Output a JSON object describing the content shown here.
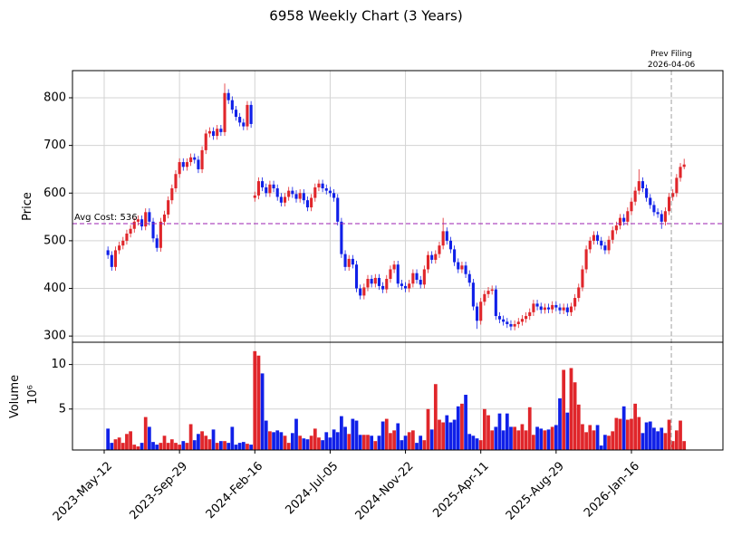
{
  "chart_data": {
    "type": "candlestick",
    "title": "6958 Weekly Chart (3 Years)",
    "y_label": "Price",
    "up_color": "#e0262b",
    "down_color": "#1020e8",
    "grid": true,
    "ylim": [
      287,
      857
    ],
    "yticks": [
      300,
      400,
      500,
      600,
      700,
      800
    ],
    "xlim": [
      -8.42,
      164.3
    ],
    "xticks": [
      {
        "value": 0,
        "label": "2023-May-12"
      },
      {
        "value": 20,
        "label": "2023-Sep-29"
      },
      {
        "value": 40,
        "label": "2024-Feb-16"
      },
      {
        "value": 60,
        "label": "2024-Jul-05"
      },
      {
        "value": 80,
        "label": "2024-Nov-22"
      },
      {
        "value": 100,
        "label": "2025-Apr-11"
      },
      {
        "value": 120,
        "label": "2025-Aug-29"
      },
      {
        "value": 140,
        "label": "2026-Jan-16"
      }
    ],
    "avg_cost": {
      "label": "Avg Cost: 536",
      "value": 536,
      "color": "#9b1fb0"
    },
    "filing": {
      "label": "Prev Filing",
      "date": "2026-04-06",
      "x": 150.6,
      "color": "#a0a0a0"
    },
    "x": [
      1,
      2,
      3,
      4,
      5,
      6,
      7,
      8,
      9,
      10,
      11,
      12,
      13,
      14,
      15,
      16,
      17,
      18,
      19,
      20,
      21,
      22,
      23,
      24,
      25,
      26,
      27,
      28,
      29,
      30,
      31,
      32,
      33,
      34,
      35,
      36,
      37,
      38,
      39,
      40,
      41,
      42,
      43,
      44,
      45,
      46,
      47,
      48,
      49,
      50,
      51,
      52,
      53,
      54,
      55,
      56,
      57,
      58,
      59,
      60,
      61,
      62,
      63,
      64,
      65,
      66,
      67,
      68,
      69,
      70,
      71,
      72,
      73,
      74,
      75,
      76,
      77,
      78,
      79,
      80,
      81,
      82,
      83,
      84,
      85,
      86,
      87,
      88,
      89,
      90,
      91,
      92,
      93,
      94,
      95,
      96,
      97,
      98,
      99,
      100,
      101,
      102,
      103,
      104,
      105,
      106,
      107,
      108,
      109,
      110,
      111,
      112,
      113,
      114,
      115,
      116,
      117,
      118,
      119,
      120,
      121,
      122,
      123,
      124,
      125,
      126,
      127,
      128,
      129,
      130,
      131,
      132,
      133,
      134,
      135,
      136,
      137,
      138,
      139,
      140,
      141,
      142,
      143,
      144,
      145,
      146,
      147,
      148,
      149,
      150,
      151,
      152,
      153,
      154
    ],
    "open": [
      480,
      470,
      445,
      480,
      490,
      500,
      515,
      525,
      540,
      545,
      530,
      560,
      540,
      505,
      485,
      540,
      555,
      585,
      610,
      640,
      665,
      655,
      665,
      675,
      670,
      650,
      690,
      725,
      730,
      720,
      735,
      728,
      810,
      795,
      775,
      760,
      748,
      740,
      785,
      590,
      595,
      625,
      612,
      600,
      618,
      610,
      592,
      580,
      592,
      605,
      598,
      588,
      600,
      585,
      570,
      590,
      612,
      620,
      610,
      605,
      600,
      590,
      540,
      472,
      445,
      462,
      450,
      400,
      385,
      402,
      420,
      410,
      422,
      405,
      398,
      420,
      440,
      450,
      410,
      405,
      400,
      410,
      432,
      418,
      408,
      440,
      470,
      460,
      472,
      490,
      520,
      500,
      482,
      455,
      440,
      448,
      430,
      412,
      362,
      332,
      372,
      388,
      395,
      398,
      342,
      335,
      330,
      325,
      320,
      325,
      330,
      336,
      342,
      350,
      368,
      362,
      355,
      360,
      356,
      365,
      360,
      354,
      360,
      350,
      362,
      380,
      402,
      440,
      482,
      500,
      512,
      500,
      490,
      480,
      502,
      522,
      532,
      548,
      540,
      562,
      582,
      605,
      625,
      610,
      590,
      575,
      560,
      556,
      540,
      562,
      592,
      600,
      632,
      655
    ],
    "high": [
      488,
      478,
      488,
      498,
      508,
      523,
      533,
      548,
      553,
      553,
      568,
      568,
      548,
      513,
      548,
      563,
      593,
      618,
      648,
      673,
      673,
      673,
      683,
      683,
      678,
      698,
      733,
      738,
      738,
      743,
      743,
      830,
      818,
      803,
      783,
      768,
      756,
      793,
      793,
      603,
      633,
      633,
      620,
      626,
      626,
      618,
      600,
      600,
      613,
      613,
      606,
      608,
      608,
      593,
      598,
      620,
      628,
      628,
      618,
      613,
      608,
      598,
      548,
      480,
      470,
      470,
      458,
      408,
      410,
      428,
      428,
      430,
      430,
      413,
      428,
      448,
      458,
      458,
      418,
      413,
      418,
      440,
      440,
      426,
      448,
      478,
      478,
      480,
      498,
      548,
      528,
      508,
      490,
      463,
      456,
      456,
      438,
      420,
      370,
      380,
      396,
      403,
      406,
      406,
      350,
      343,
      338,
      333,
      333,
      338,
      344,
      350,
      358,
      376,
      376,
      370,
      368,
      368,
      373,
      373,
      368,
      368,
      368,
      370,
      388,
      410,
      448,
      490,
      508,
      520,
      520,
      508,
      498,
      510,
      530,
      540,
      556,
      556,
      570,
      590,
      613,
      650,
      633,
      618,
      598,
      583,
      568,
      564,
      570,
      600,
      608,
      640,
      663,
      672
    ],
    "low": [
      462,
      437,
      437,
      472,
      482,
      492,
      507,
      517,
      532,
      522,
      522,
      532,
      497,
      477,
      477,
      532,
      547,
      577,
      602,
      632,
      647,
      647,
      657,
      662,
      642,
      642,
      682,
      717,
      712,
      712,
      720,
      720,
      787,
      767,
      752,
      740,
      732,
      732,
      737,
      582,
      587,
      604,
      592,
      592,
      602,
      584,
      572,
      572,
      584,
      590,
      580,
      580,
      577,
      562,
      562,
      582,
      604,
      602,
      597,
      592,
      582,
      532,
      464,
      437,
      437,
      442,
      392,
      377,
      377,
      394,
      402,
      402,
      397,
      390,
      390,
      412,
      432,
      402,
      397,
      392,
      392,
      402,
      410,
      400,
      400,
      432,
      452,
      452,
      464,
      482,
      492,
      474,
      447,
      432,
      432,
      422,
      404,
      354,
      315,
      324,
      364,
      380,
      387,
      334,
      327,
      322,
      317,
      312,
      312,
      317,
      322,
      328,
      334,
      342,
      354,
      347,
      347,
      348,
      348,
      352,
      346,
      346,
      342,
      342,
      354,
      372,
      394,
      432,
      474,
      492,
      492,
      482,
      472,
      472,
      494,
      514,
      524,
      532,
      532,
      554,
      574,
      597,
      602,
      582,
      567,
      552,
      548,
      525,
      532,
      554,
      584,
      592,
      624,
      650
    ],
    "close": [
      470,
      445,
      480,
      490,
      500,
      515,
      525,
      540,
      545,
      530,
      560,
      540,
      505,
      485,
      540,
      555,
      585,
      610,
      640,
      665,
      655,
      665,
      675,
      670,
      650,
      690,
      725,
      730,
      720,
      735,
      728,
      810,
      795,
      775,
      760,
      748,
      740,
      785,
      745,
      595,
      625,
      612,
      600,
      618,
      610,
      592,
      580,
      592,
      605,
      598,
      588,
      600,
      585,
      570,
      590,
      612,
      620,
      610,
      605,
      600,
      590,
      540,
      472,
      445,
      462,
      450,
      400,
      385,
      402,
      420,
      410,
      422,
      405,
      398,
      420,
      440,
      450,
      410,
      405,
      400,
      410,
      432,
      418,
      408,
      440,
      470,
      460,
      472,
      490,
      520,
      500,
      482,
      455,
      440,
      448,
      430,
      412,
      362,
      332,
      372,
      388,
      395,
      398,
      342,
      335,
      330,
      325,
      320,
      325,
      330,
      336,
      342,
      350,
      368,
      362,
      355,
      360,
      356,
      365,
      360,
      354,
      360,
      350,
      362,
      380,
      402,
      440,
      482,
      500,
      512,
      500,
      490,
      480,
      502,
      522,
      532,
      548,
      540,
      562,
      582,
      605,
      625,
      610,
      590,
      575,
      560,
      556,
      540,
      562,
      592,
      600,
      632,
      655,
      660
    ],
    "volume": {
      "y_label": "Volume",
      "scale_label": "10⁶",
      "ylim": [
        0.4,
        12.5
      ],
      "yticks": [
        5,
        10
      ],
      "values": [
        2.8,
        1.2,
        1.6,
        1.8,
        1.2,
        2.2,
        2.5,
        1.0,
        0.8,
        1.2,
        4.1,
        3.0,
        1.3,
        1.0,
        1.2,
        2.0,
        1.2,
        1.6,
        1.2,
        1.0,
        1.4,
        1.2,
        3.3,
        1.5,
        2.2,
        2.5,
        2.0,
        1.6,
        2.7,
        1.2,
        1.4,
        1.4,
        1.2,
        3.0,
        1.0,
        1.2,
        1.3,
        1.1,
        1.0,
        11.5,
        11.0,
        9.0,
        3.7,
        2.5,
        2.4,
        2.6,
        2.4,
        2.0,
        1.2,
        2.3,
        3.9,
        2.0,
        1.7,
        1.6,
        2.0,
        2.8,
        1.8,
        1.5,
        2.4,
        1.8,
        2.7,
        2.4,
        4.2,
        3.0,
        2.2,
        3.9,
        3.7,
        2.1,
        2.1,
        2.1,
        2.0,
        1.4,
        2.0,
        3.6,
        3.9,
        2.3,
        2.6,
        3.4,
        1.5,
        2.0,
        2.4,
        2.6,
        1.2,
        2.0,
        1.5,
        5.0,
        2.7,
        7.8,
        3.8,
        3.5,
        4.3,
        3.5,
        3.8,
        5.3,
        5.6,
        6.6,
        2.2,
        2.0,
        1.7,
        1.5,
        5.0,
        4.3,
        2.6,
        3.0,
        4.5,
        2.6,
        4.5,
        3.0,
        3.0,
        2.6,
        3.3,
        2.6,
        5.2,
        2.1,
        3.0,
        2.8,
        2.6,
        2.7,
        3.0,
        3.2,
        6.2,
        9.4,
        4.6,
        9.6,
        8.0,
        5.5,
        3.3,
        2.4,
        3.2,
        2.6,
        3.2,
        0.9,
        2.1,
        2.0,
        2.5,
        4.0,
        3.9,
        5.3,
        3.8,
        3.9,
        5.6,
        4.1,
        2.3,
        3.5,
        3.6,
        2.9,
        2.5,
        2.9,
        2.3,
        3.8,
        1.4,
        2.6,
        3.7,
        1.4
      ]
    }
  }
}
